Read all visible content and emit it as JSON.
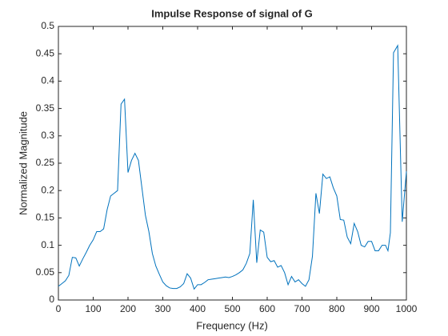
{
  "chart_data": {
    "type": "line",
    "title": "Impulse Response of signal of G",
    "xlabel": "Frequency (Hz)",
    "ylabel": "Normalized Magnitude",
    "x": [
      0,
      10,
      20,
      30,
      40,
      50,
      60,
      70,
      80,
      90,
      100,
      110,
      120,
      130,
      140,
      150,
      160,
      170,
      180,
      190,
      200,
      210,
      220,
      230,
      240,
      250,
      260,
      270,
      280,
      290,
      300,
      310,
      320,
      330,
      340,
      350,
      360,
      370,
      380,
      390,
      400,
      410,
      420,
      430,
      440,
      450,
      460,
      470,
      480,
      490,
      500,
      510,
      520,
      530,
      540,
      550,
      560,
      570,
      580,
      590,
      600,
      610,
      620,
      630,
      640,
      650,
      660,
      670,
      680,
      690,
      700,
      710,
      720,
      730,
      740,
      750,
      760,
      770,
      780,
      790,
      800,
      810,
      820,
      830,
      840,
      850,
      860,
      870,
      880,
      890,
      900,
      910,
      920,
      930,
      940,
      947,
      954,
      963,
      975,
      988,
      1000
    ],
    "series": [
      {
        "name": "G",
        "color": "#0072bd",
        "values": [
          0.025,
          0.03,
          0.035,
          0.045,
          0.078,
          0.077,
          0.062,
          0.075,
          0.087,
          0.1,
          0.11,
          0.125,
          0.125,
          0.13,
          0.165,
          0.19,
          0.195,
          0.2,
          0.358,
          0.367,
          0.233,
          0.255,
          0.268,
          0.255,
          0.205,
          0.155,
          0.125,
          0.085,
          0.062,
          0.047,
          0.033,
          0.026,
          0.022,
          0.021,
          0.021,
          0.024,
          0.03,
          0.048,
          0.04,
          0.02,
          0.028,
          0.028,
          0.032,
          0.037,
          0.038,
          0.039,
          0.04,
          0.041,
          0.042,
          0.041,
          0.043,
          0.046,
          0.05,
          0.055,
          0.067,
          0.085,
          0.183,
          0.068,
          0.128,
          0.124,
          0.078,
          0.07,
          0.072,
          0.06,
          0.063,
          0.05,
          0.028,
          0.043,
          0.033,
          0.037,
          0.03,
          0.025,
          0.037,
          0.08,
          0.195,
          0.158,
          0.23,
          0.222,
          0.225,
          0.205,
          0.19,
          0.147,
          0.146,
          0.115,
          0.103,
          0.14,
          0.125,
          0.1,
          0.097,
          0.107,
          0.107,
          0.09,
          0.09,
          0.1,
          0.1,
          0.09,
          0.123,
          0.452,
          0.465,
          0.143,
          0.235
        ]
      }
    ],
    "xlim": [
      0,
      1000
    ],
    "xticks": [
      0,
      100,
      200,
      300,
      400,
      500,
      600,
      700,
      800,
      900,
      1000
    ],
    "ylim": [
      0,
      0.5
    ],
    "yticks": [
      0,
      0.05,
      0.1,
      0.15,
      0.2,
      0.25,
      0.3,
      0.35,
      0.4,
      0.45,
      0.5
    ],
    "grid": false
  }
}
